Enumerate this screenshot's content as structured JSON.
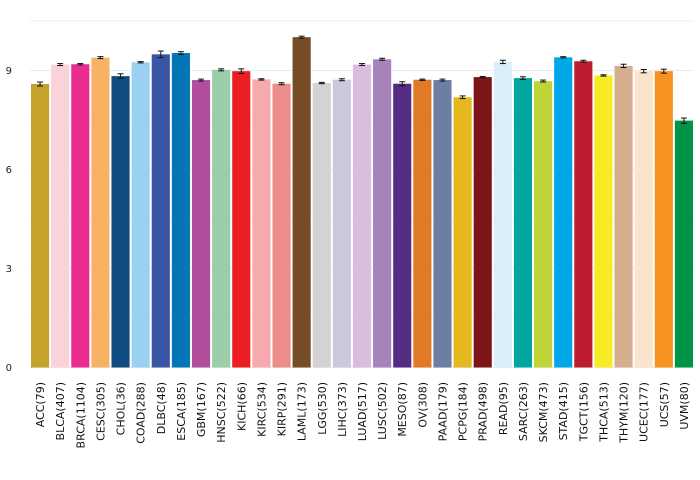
{
  "chart_data": {
    "type": "bar",
    "title": "",
    "xlabel": "",
    "ylabel": "",
    "ylim": [
      0,
      10.5
    ],
    "yticks": [
      0,
      3,
      6,
      9
    ],
    "grid": true,
    "legend": "none",
    "categories": [
      "ACC(79)",
      "BLCA(407)",
      "BRCA(1104)",
      "CESC(305)",
      "CHOL(36)",
      "COAD(288)",
      "DLBC(48)",
      "ESCA(185)",
      "GBM(167)",
      "HNSC(522)",
      "KICH(66)",
      "KIRC(534)",
      "KIRP(291)",
      "LAML(173)",
      "LGG(530)",
      "LIHC(373)",
      "LUAD(517)",
      "LUSC(502)",
      "MESO(87)",
      "OV(308)",
      "PAAD(179)",
      "PCPG(184)",
      "PRAD(498)",
      "READ(95)",
      "SARC(263)",
      "SKCM(473)",
      "STAD(415)",
      "TGCT(156)",
      "THCA(513)",
      "THYM(120)",
      "UCEC(177)",
      "UCS(57)",
      "UVM(80)"
    ],
    "values": [
      8.59,
      9.18,
      9.19,
      9.39,
      8.83,
      9.25,
      9.49,
      9.53,
      8.71,
      9.02,
      8.98,
      8.73,
      8.6,
      10.01,
      8.62,
      8.72,
      9.18,
      9.34,
      8.6,
      8.72,
      8.71,
      8.19,
      8.8,
      9.26,
      8.77,
      8.68,
      9.4,
      9.28,
      8.85,
      9.14,
      8.98,
      8.98,
      7.48
    ],
    "errors": [
      0.06,
      0.03,
      0.02,
      0.03,
      0.07,
      0.02,
      0.1,
      0.04,
      0.03,
      0.03,
      0.07,
      0.02,
      0.03,
      0.03,
      0.02,
      0.03,
      0.03,
      0.03,
      0.06,
      0.02,
      0.03,
      0.04,
      0.02,
      0.05,
      0.04,
      0.03,
      0.02,
      0.03,
      0.02,
      0.05,
      0.05,
      0.06,
      0.08
    ],
    "colors": [
      "#C4A22C",
      "#FAD2D9",
      "#EA2D8F",
      "#F8B264",
      "#0F4C81",
      "#9AD1F0",
      "#3A55A4",
      "#0476B8",
      "#B14E9D",
      "#9BCEA8",
      "#EB1E24",
      "#F6AAAE",
      "#EC8C8B",
      "#754C25",
      "#D3D3D3",
      "#CBC8DB",
      "#D8BDDC",
      "#A683BA",
      "#542D82",
      "#E07A27",
      "#6D7DA3",
      "#E5B81D",
      "#7D1418",
      "#DBEEF9",
      "#00A79F",
      "#BFD537",
      "#00A8E9",
      "#BC1D2F",
      "#F7EB25",
      "#D5AE8D",
      "#FAE4CC",
      "#F6921E",
      "#009447"
    ]
  }
}
